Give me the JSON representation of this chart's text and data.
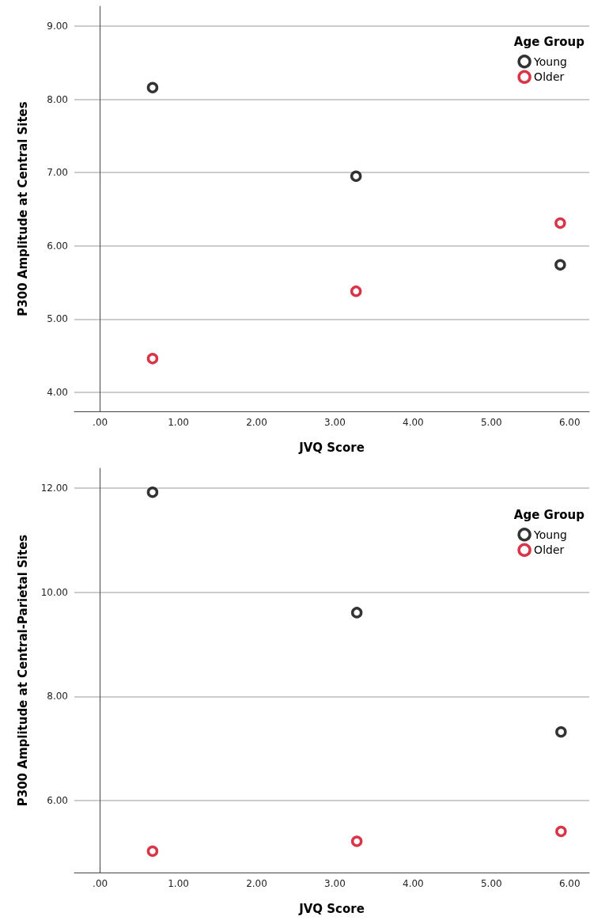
{
  "chart_data": [
    {
      "type": "scatter",
      "xlabel": "JVQ Score",
      "ylabel": "P300 Amplitude at Central Sites",
      "legend_title": "Age Group",
      "legend": "top right",
      "grid": "y",
      "marker": "circle",
      "xlim": [
        -0.33,
        6.25
      ],
      "xticks": [
        {
          "value": 0,
          "label": ".00"
        },
        {
          "value": 1,
          "label": "1.00"
        },
        {
          "value": 2,
          "label": "2.00"
        },
        {
          "value": 3,
          "label": "3.00"
        },
        {
          "value": 4,
          "label": "4.00"
        },
        {
          "value": 5,
          "label": "5.00"
        },
        {
          "value": 6,
          "label": "6.00"
        }
      ],
      "ylim": [
        3.74,
        9.27
      ],
      "yticks": [
        {
          "value": 4,
          "label": "4.00"
        },
        {
          "value": 5,
          "label": "5.00"
        },
        {
          "value": 6,
          "label": "6.00"
        },
        {
          "value": 7,
          "label": "7.00"
        },
        {
          "value": 8,
          "label": "8.00"
        },
        {
          "value": 9,
          "label": "9.00"
        }
      ],
      "x": [
        0.67,
        3.27,
        5.88
      ],
      "series": [
        {
          "name": "Young",
          "color": "#000000",
          "values": [
            8.16,
            6.95,
            5.74
          ]
        },
        {
          "name": "Older",
          "color": "#d0021b",
          "values": [
            4.46,
            5.38,
            6.31
          ]
        }
      ]
    },
    {
      "type": "scatter",
      "xlabel": "JVQ Score",
      "ylabel": "P300 Amplitude at Central-Parietal Sites",
      "legend_title": "Age Group",
      "legend": "top right",
      "grid": "y",
      "marker": "circle",
      "xlim": [
        -0.33,
        6.25
      ],
      "xticks": [
        {
          "value": 0,
          "label": ".00"
        },
        {
          "value": 1,
          "label": "1.00"
        },
        {
          "value": 2,
          "label": "2.00"
        },
        {
          "value": 3,
          "label": "3.00"
        },
        {
          "value": 4,
          "label": "4.00"
        },
        {
          "value": 5,
          "label": "5.00"
        },
        {
          "value": 6,
          "label": "6.00"
        }
      ],
      "ylim": [
        4.62,
        12.38
      ],
      "yticks": [
        {
          "value": 6,
          "label": "6.00"
        },
        {
          "value": 8,
          "label": "8.00"
        },
        {
          "value": 10,
          "label": "10.00"
        },
        {
          "value": 12,
          "label": "12.00"
        }
      ],
      "x": [
        0.67,
        3.28,
        5.89
      ],
      "series": [
        {
          "name": "Young",
          "color": "#000000",
          "values": [
            11.92,
            9.61,
            7.32
          ]
        },
        {
          "name": "Older",
          "color": "#d0021b",
          "values": [
            5.03,
            5.22,
            5.41
          ]
        }
      ]
    }
  ]
}
